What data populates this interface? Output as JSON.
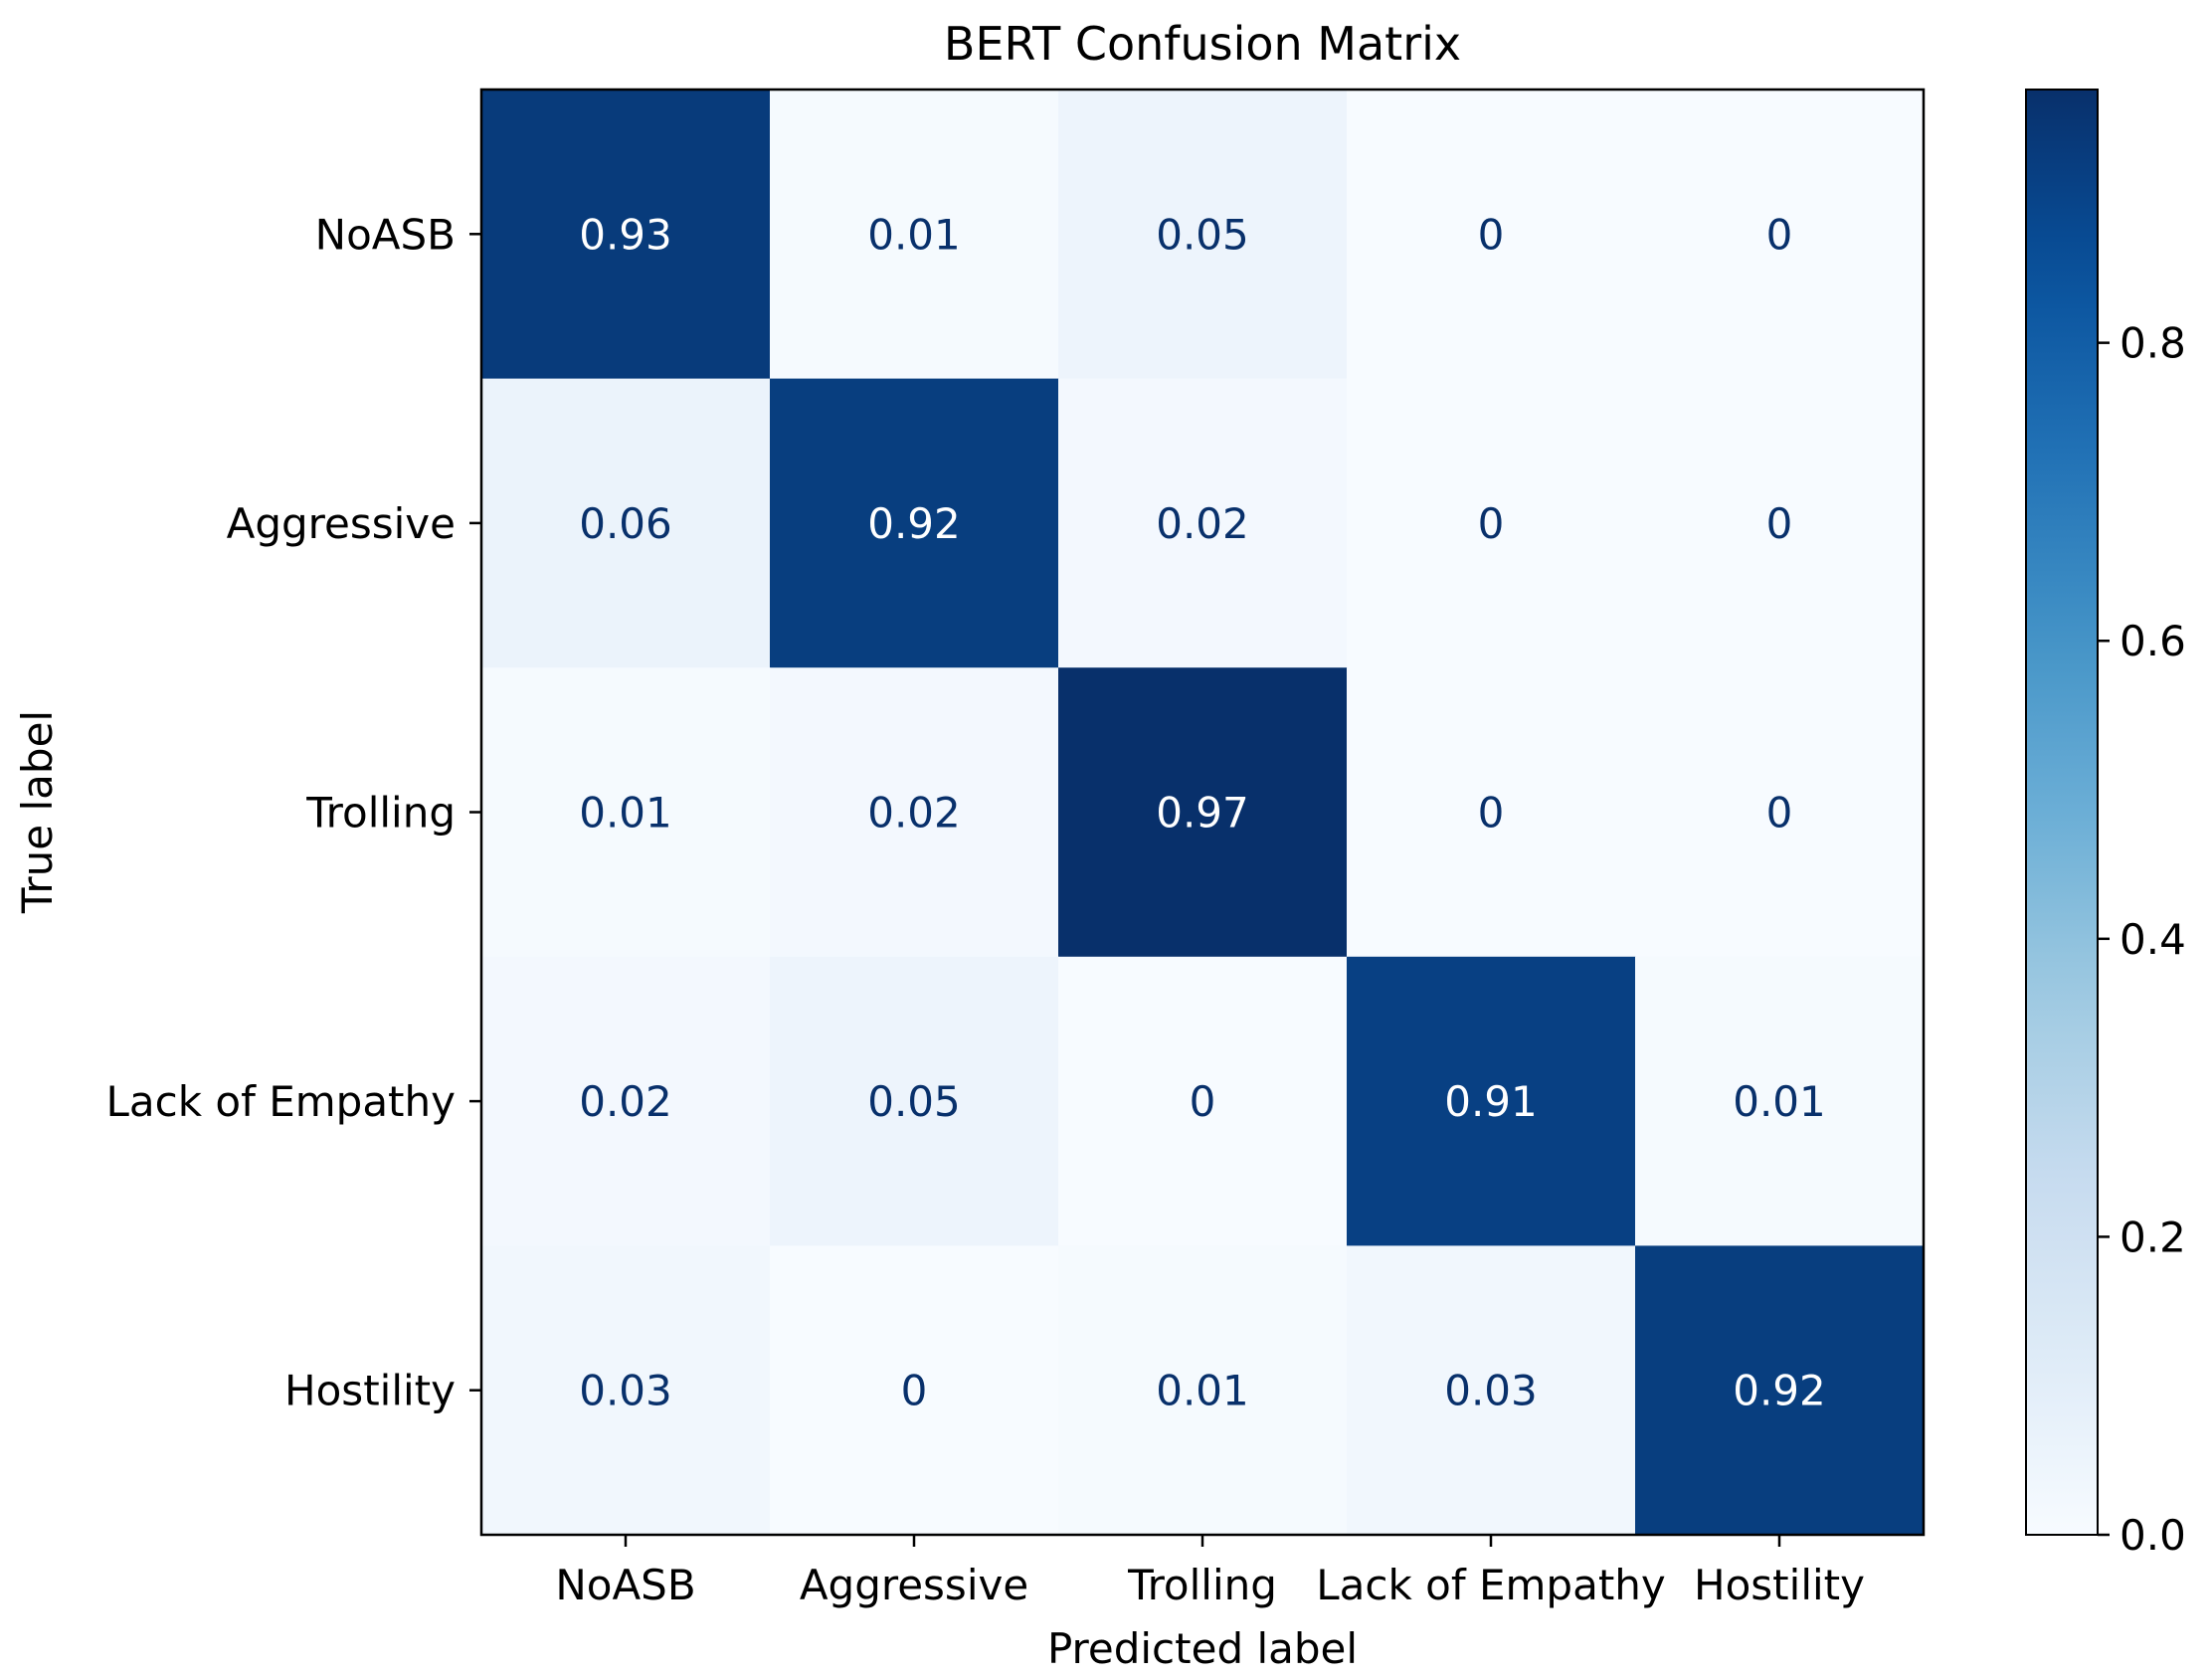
{
  "chart_data": {
    "type": "heatmap",
    "title": "BERT Confusion Matrix",
    "xlabel": "Predicted label",
    "ylabel": "True label",
    "x_categories": [
      "NoASB",
      "Aggressive",
      "Trolling",
      "Lack of Empathy",
      "Hostility"
    ],
    "y_categories": [
      "NoASB",
      "Aggressive",
      "Trolling",
      "Lack of Empathy",
      "Hostility"
    ],
    "values": [
      [
        0.93,
        0.01,
        0.05,
        0,
        0
      ],
      [
        0.06,
        0.92,
        0.02,
        0,
        0
      ],
      [
        0.01,
        0.02,
        0.97,
        0,
        0
      ],
      [
        0.02,
        0.05,
        0,
        0.91,
        0.01
      ],
      [
        0.03,
        0,
        0.01,
        0.03,
        0.92
      ]
    ],
    "colormap": "Blues",
    "colorbar": {
      "range": [
        0,
        0.97
      ],
      "ticks": [
        0.0,
        0.2,
        0.4,
        0.6,
        0.8
      ],
      "tick_labels": [
        "0.0",
        "0.2",
        "0.4",
        "0.6",
        "0.8"
      ]
    },
    "colors": {
      "low": "#f7fbff",
      "high": "#08306b",
      "text_dark_cell": "#ffffff",
      "text_light_cell": "#08306b"
    }
  }
}
